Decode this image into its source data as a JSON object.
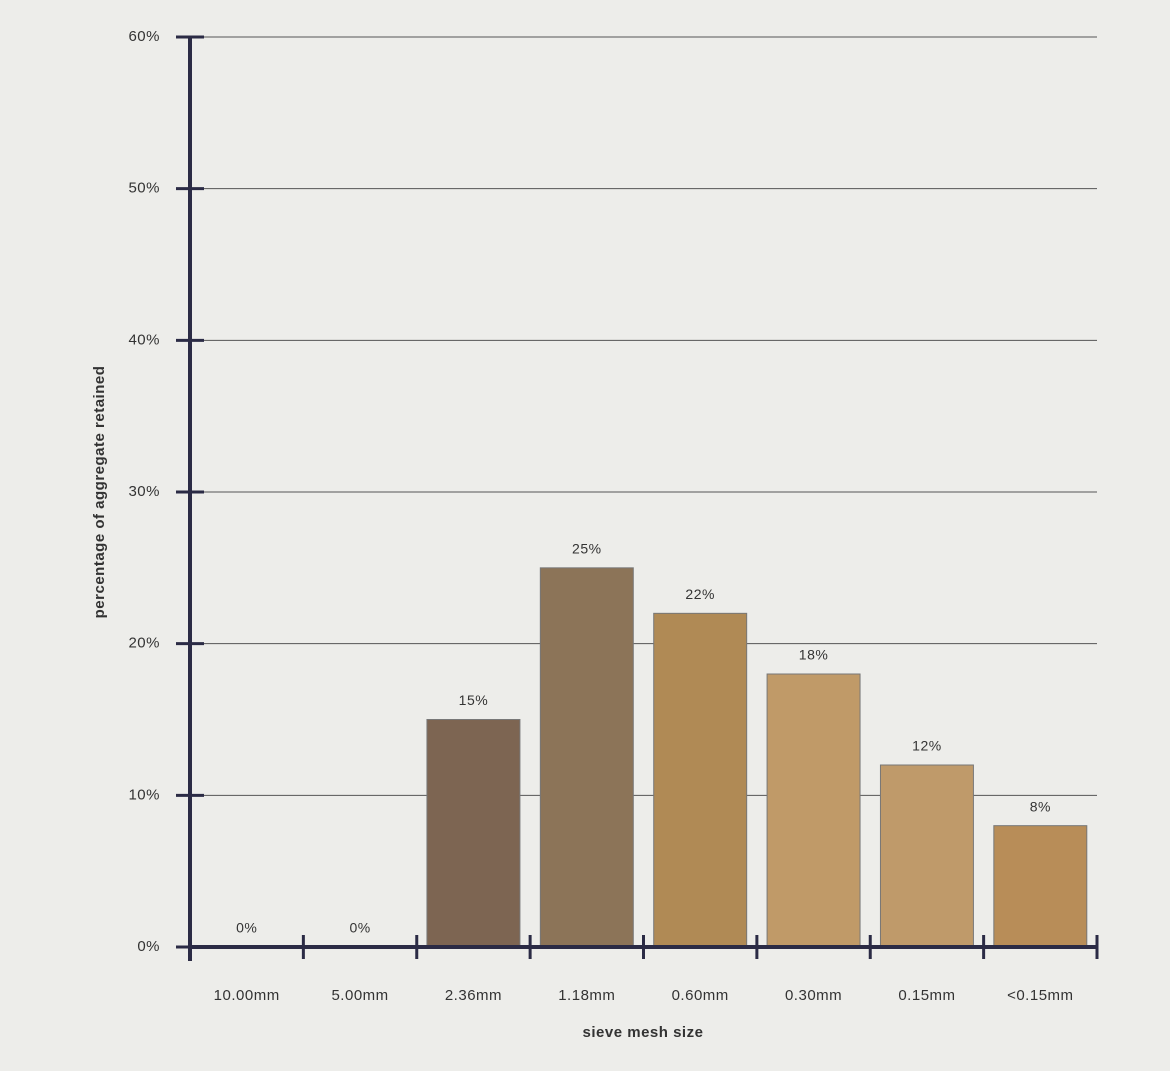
{
  "chart_data": {
    "type": "bar",
    "x_label": "sieve mesh size",
    "y_label": "percentage of aggregate retained",
    "categories": [
      "10.00mm",
      "5.00mm",
      "2.36mm",
      "1.18mm",
      "0.60mm",
      "0.30mm",
      "0.15mm",
      "<0.15mm"
    ],
    "values": [
      0,
      0,
      15,
      25,
      22,
      18,
      12,
      8
    ],
    "value_labels": [
      "0%",
      "0%",
      "15%",
      "25%",
      "22%",
      "18%",
      "12%",
      "8%"
    ],
    "colors": [
      "#8a7560",
      "#8a7560",
      "#7d6552",
      "#8c7458",
      "#b08a55",
      "#c09a68",
      "#bf9a6a",
      "#b88d58"
    ],
    "ylim": [
      0,
      60
    ],
    "yticks": [
      {
        "value": 0,
        "label": "0%"
      },
      {
        "value": 10,
        "label": "10%"
      },
      {
        "value": 20,
        "label": "20%"
      },
      {
        "value": 30,
        "label": "30%"
      },
      {
        "value": 40,
        "label": "40%"
      },
      {
        "value": 50,
        "label": "50%"
      },
      {
        "value": 60,
        "label": "60%"
      }
    ],
    "grid": true
  }
}
